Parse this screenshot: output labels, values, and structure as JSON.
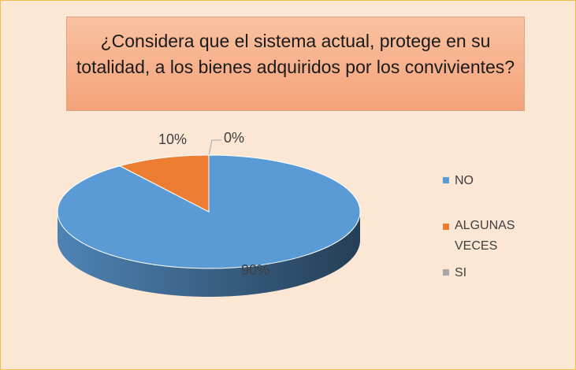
{
  "chart_data": {
    "type": "pie3d",
    "title": "¿Considera que el sistema actual, protege en su totalidad, a los bienes adquiridos por los convivientes?",
    "categories": [
      "NO",
      "ALGUNAS VECES",
      "SI"
    ],
    "values": [
      90,
      10,
      0
    ],
    "value_labels": [
      "90%",
      "10%",
      "0%"
    ],
    "colors": [
      "#5b9bd5",
      "#ed7d31",
      "#a5a5a5"
    ],
    "legend": "right"
  }
}
